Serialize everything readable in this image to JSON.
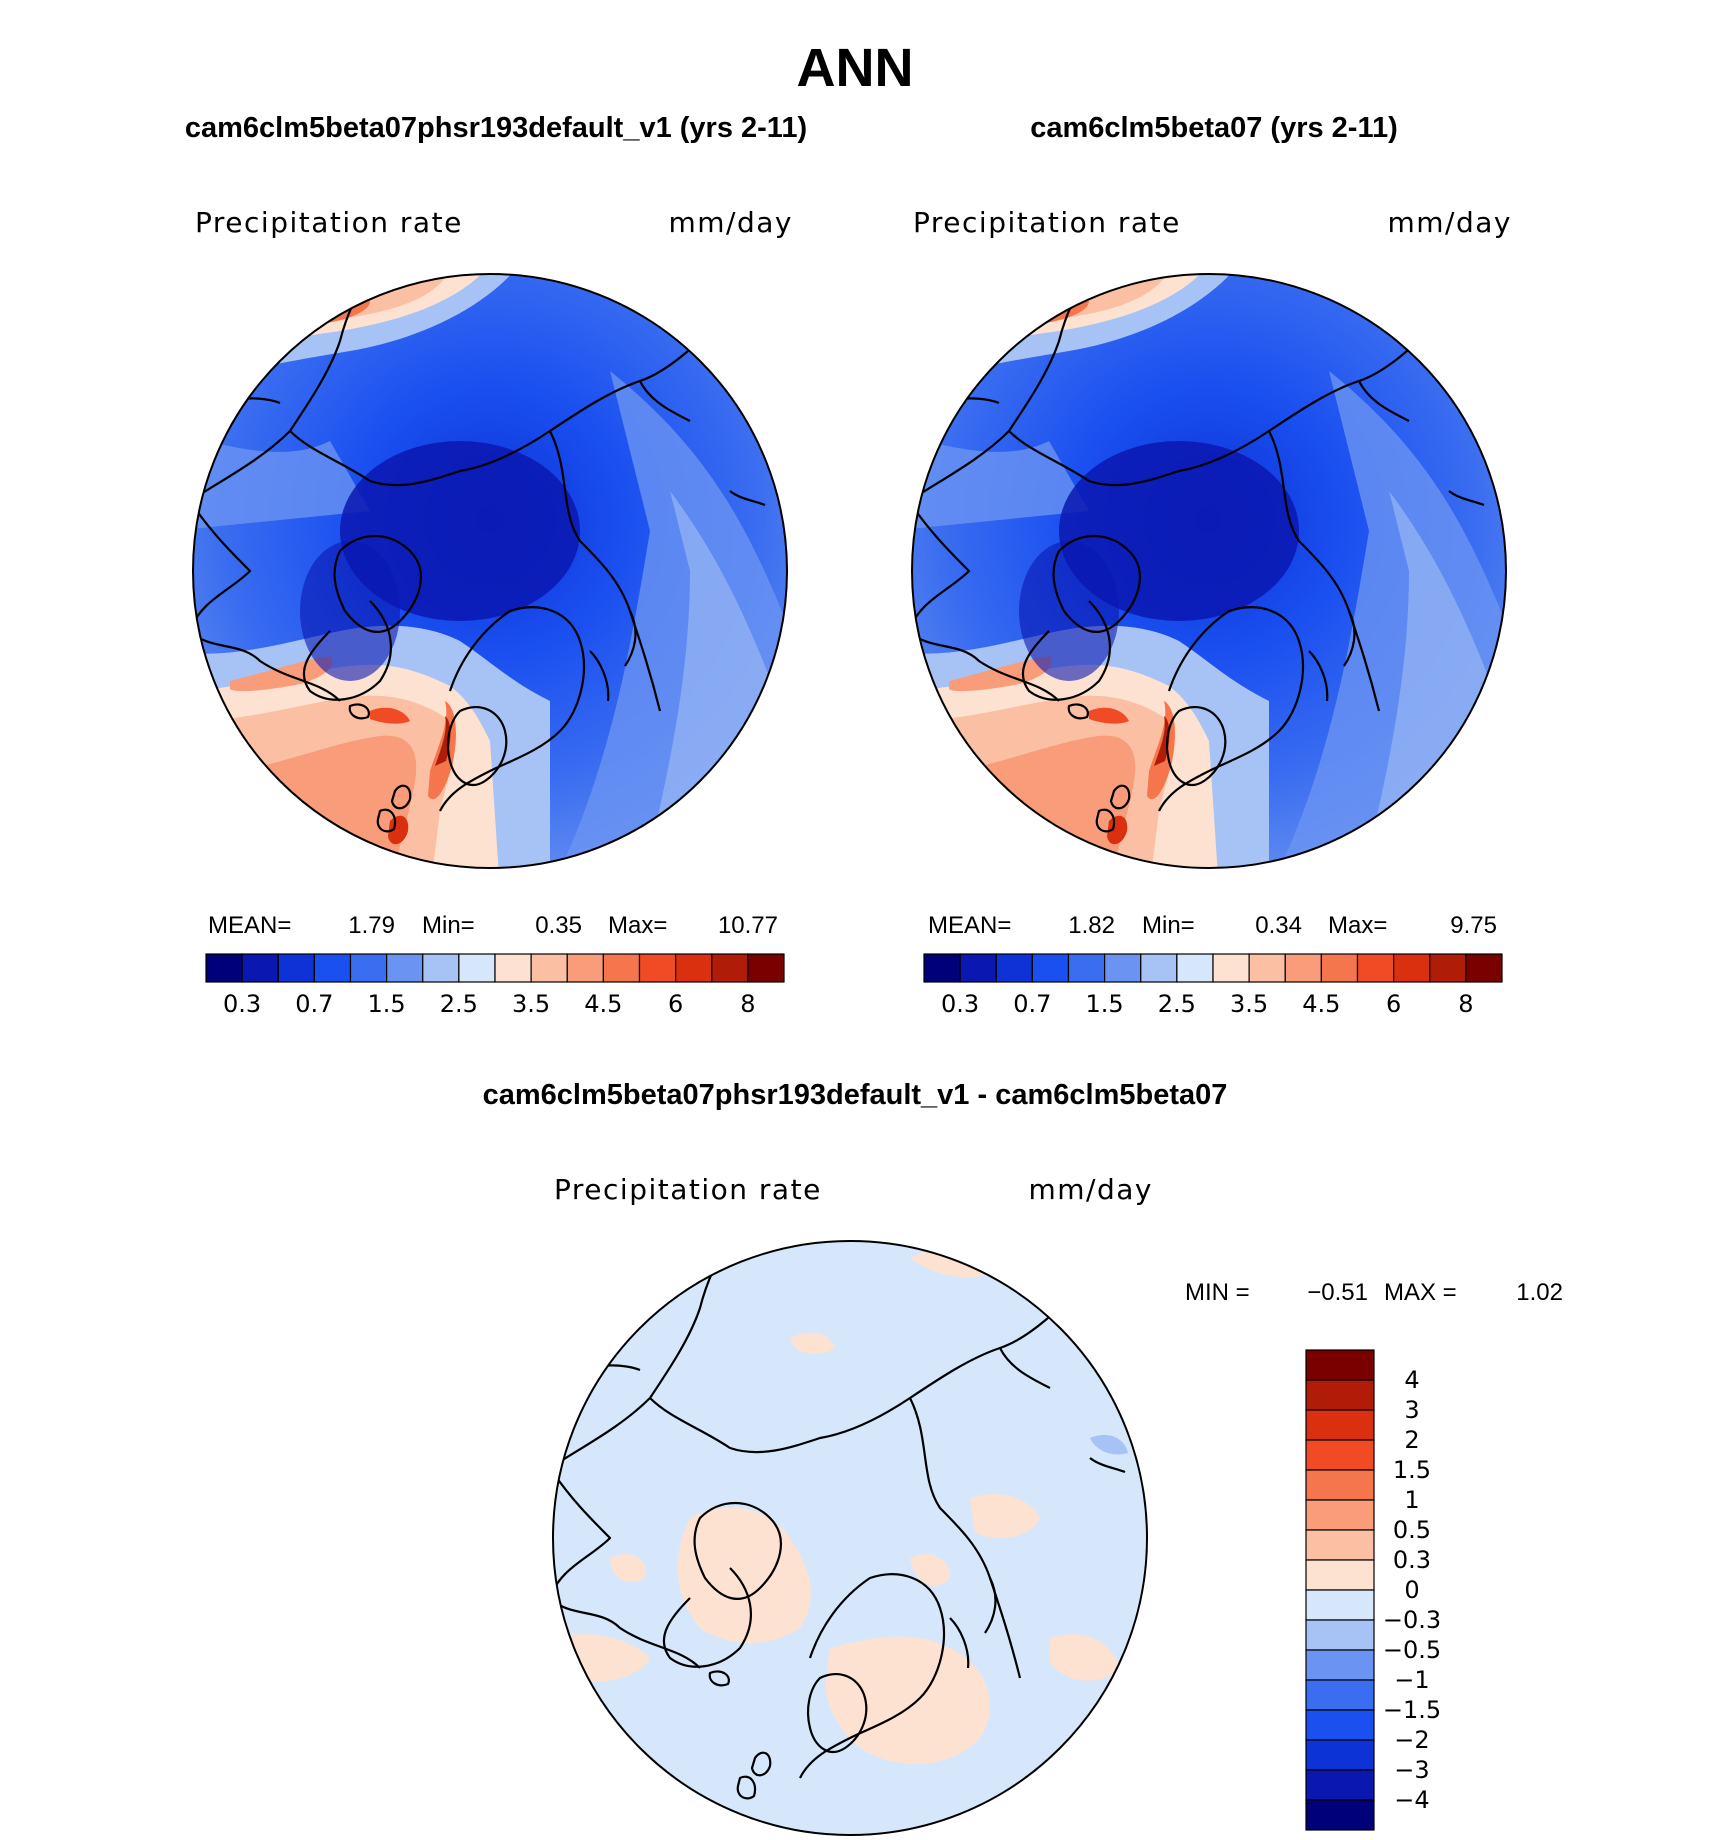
{
  "title": "ANN",
  "panels": [
    {
      "id": "left",
      "case_title": "cam6clm5beta07phsr193default_v1 (yrs 2-11)",
      "variable": "Precipitation rate",
      "units": "mm/day",
      "stats": {
        "mean_label": "MEAN=",
        "mean": "1.79",
        "min_label": "Min=",
        "min": "0.35",
        "max_label": "Max=",
        "max": "10.77"
      }
    },
    {
      "id": "right",
      "case_title": "cam6clm5beta07 (yrs 2-11)",
      "variable": "Precipitation rate",
      "units": "mm/day",
      "stats": {
        "mean_label": "MEAN=",
        "mean": "1.82",
        "min_label": "Min=",
        "min": "0.34",
        "max_label": "Max=",
        "max": "9.75"
      }
    }
  ],
  "diff_panel": {
    "case_title": "cam6clm5beta07phsr193default_v1 - cam6clm5beta07",
    "variable": "Precipitation rate",
    "units": "mm/day",
    "min_label": "MIN =",
    "min": "−0.51",
    "max_label": "MAX =",
    "max": "1.02"
  },
  "colorbar_abs": {
    "colors": [
      "#00007a",
      "#0a17b0",
      "#0d32d6",
      "#1a4ff0",
      "#3a6df0",
      "#6a93f2",
      "#a7c3f5",
      "#d6e7fb",
      "#fde2d2",
      "#fbc0a4",
      "#f89c79",
      "#f5754c",
      "#f04b25",
      "#da3010",
      "#b01c08",
      "#7a0000"
    ],
    "tick_labels": [
      "0.3",
      "0.7",
      "1.5",
      "2.5",
      "3.5",
      "4.5",
      "6",
      "8"
    ]
  },
  "colorbar_diff": {
    "colors": [
      "#7a0000",
      "#b01c08",
      "#da3010",
      "#f04b25",
      "#f5754c",
      "#f89c79",
      "#fbc0a4",
      "#fde2d2",
      "#d6e7fb",
      "#a7c3f5",
      "#6a93f2",
      "#3a6df0",
      "#1a4ff0",
      "#0d32d6",
      "#0a17b0",
      "#00007a"
    ],
    "tick_labels": [
      "4",
      "3",
      "2",
      "1.5",
      "1",
      "0.5",
      "0.3",
      "0",
      "−0.3",
      "−0.5",
      "−1",
      "−1.5",
      "−2",
      "−3",
      "−4"
    ]
  }
}
